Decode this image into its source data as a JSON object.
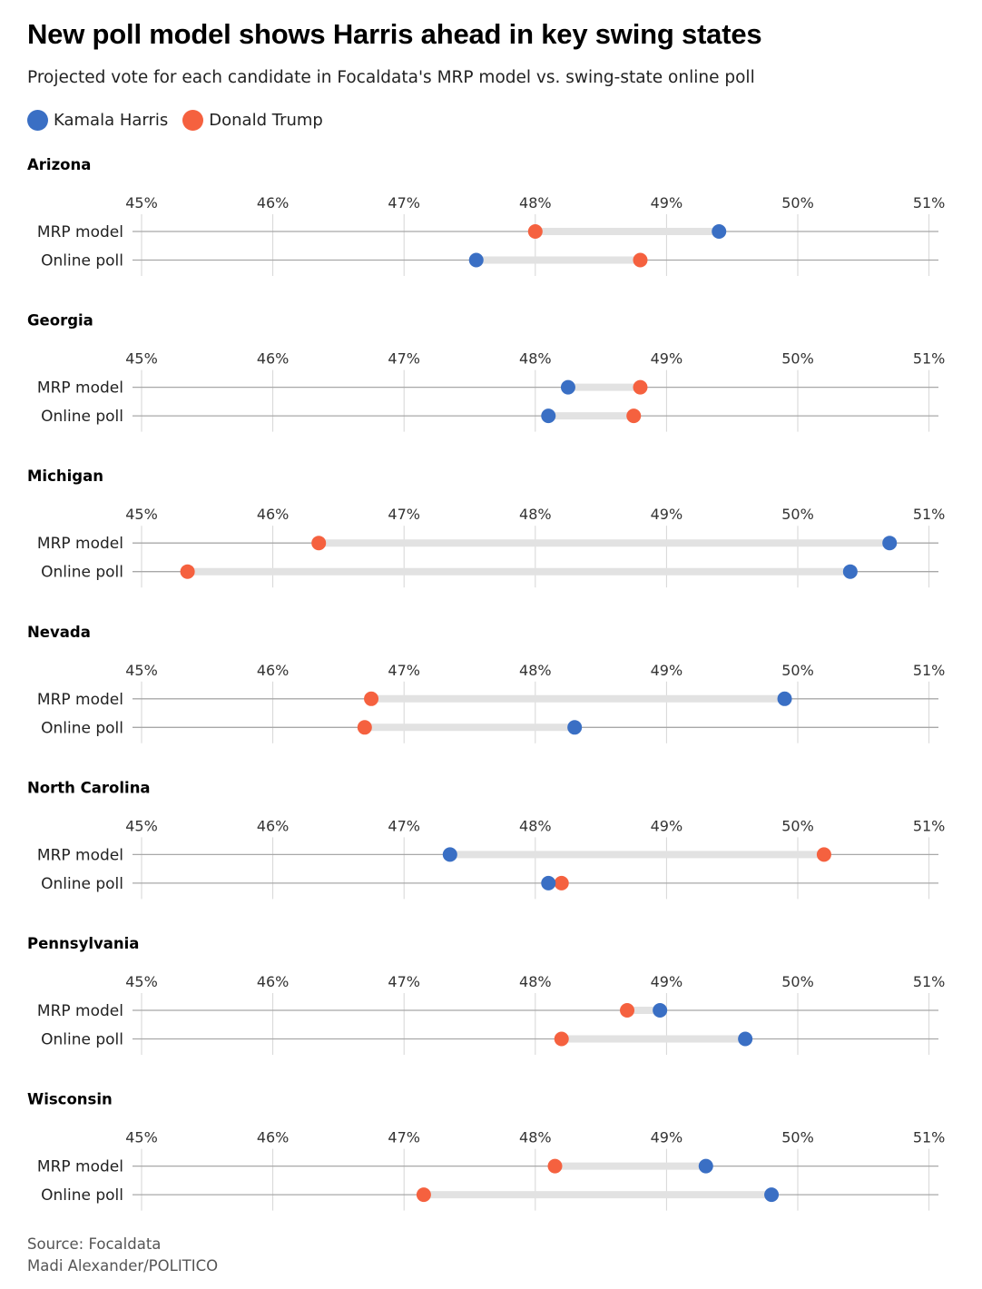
{
  "header": {
    "title": "New poll model shows Harris ahead in key swing states",
    "subtitle": "Projected vote for each candidate in Focaldata's MRP model vs. swing-state online poll"
  },
  "legend": [
    {
      "name": "Kamala Harris",
      "color": "#3a6fc4"
    },
    {
      "name": "Donald Trump",
      "color": "#f5613f"
    }
  ],
  "colors": {
    "harris": "#3a6fc4",
    "trump": "#f5613f",
    "gap_bar": "#e2e2e2",
    "axis_line": "#a8a8a8",
    "grid": "#d6d6d6"
  },
  "footer": {
    "source": "Source: Focaldata",
    "credit": "Madi Alexander/POLITICO"
  },
  "chart_data": {
    "type": "dot-plot",
    "x_ticks": [
      45,
      46,
      47,
      48,
      49,
      50,
      51
    ],
    "x_tick_labels": [
      "45%",
      "46%",
      "47%",
      "48%",
      "49%",
      "50%",
      "51%"
    ],
    "xlim": [
      45,
      51
    ],
    "grid": true,
    "legend_position": "top-left",
    "row_labels": [
      "MRP model",
      "Online poll"
    ],
    "panels": [
      {
        "state": "Arizona",
        "rows": [
          {
            "label": "MRP model",
            "harris": 49.4,
            "trump": 48.0
          },
          {
            "label": "Online poll",
            "harris": 47.55,
            "trump": 48.8
          }
        ]
      },
      {
        "state": "Georgia",
        "rows": [
          {
            "label": "MRP model",
            "harris": 48.25,
            "trump": 48.8
          },
          {
            "label": "Online poll",
            "harris": 48.1,
            "trump": 48.75
          }
        ]
      },
      {
        "state": "Michigan",
        "rows": [
          {
            "label": "MRP model",
            "harris": 50.7,
            "trump": 46.35
          },
          {
            "label": "Online poll",
            "harris": 50.4,
            "trump": 45.35
          }
        ]
      },
      {
        "state": "Nevada",
        "rows": [
          {
            "label": "MRP model",
            "harris": 49.9,
            "trump": 46.75
          },
          {
            "label": "Online poll",
            "harris": 48.3,
            "trump": 46.7
          }
        ]
      },
      {
        "state": "North Carolina",
        "rows": [
          {
            "label": "MRP model",
            "harris": 47.35,
            "trump": 50.2
          },
          {
            "label": "Online poll",
            "harris": 48.1,
            "trump": 48.2
          }
        ]
      },
      {
        "state": "Pennsylvania",
        "rows": [
          {
            "label": "MRP model",
            "harris": 48.95,
            "trump": 48.7
          },
          {
            "label": "Online poll",
            "harris": 49.6,
            "trump": 48.2
          }
        ]
      },
      {
        "state": "Wisconsin",
        "rows": [
          {
            "label": "MRP model",
            "harris": 49.3,
            "trump": 48.15
          },
          {
            "label": "Online poll",
            "harris": 49.8,
            "trump": 47.15
          }
        ]
      }
    ]
  }
}
